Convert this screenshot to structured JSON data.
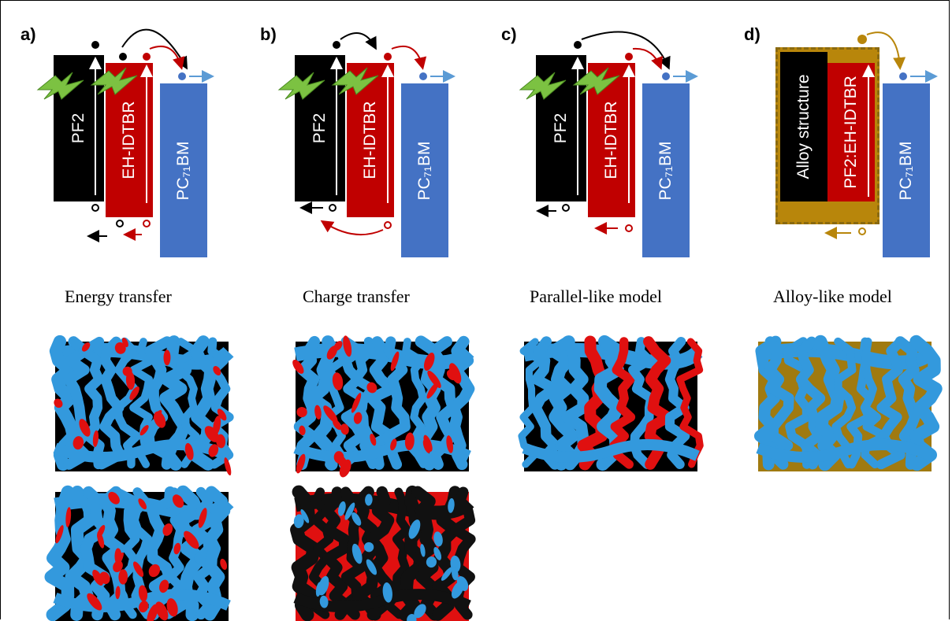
{
  "labels": {
    "pf2": "PF2",
    "eh_idtbr": "EH-IDTBR",
    "pc71bm": "PC₇₁BM",
    "alloy_structure": "Alloy structure",
    "pf2_eh_idtbr": "PF2:EH-IDTBR"
  },
  "panels": [
    {
      "letter": "a)",
      "caption": "Energy transfer"
    },
    {
      "letter": "b)",
      "caption": "Charge transfer"
    },
    {
      "letter": "c)",
      "caption": "Parallel-like model"
    },
    {
      "letter": "d)",
      "caption": "Alloy-like model"
    }
  ],
  "colors": {
    "pf2_black": "#000000",
    "idtbr_red": "#C00000",
    "pcbm_blue": "#4472C4",
    "alloy_gold": "#B8860B",
    "morph_blue": "#3399DD",
    "morph_red": "#E01010",
    "morph_gold": "#A07A10",
    "arrow_blue": "#5B9BD5",
    "bolt_green": "#7CC242"
  },
  "icons": [
    "lightning-bolt-icon",
    "electron-dot-icon",
    "hole-circle-icon",
    "arrow-icon"
  ]
}
